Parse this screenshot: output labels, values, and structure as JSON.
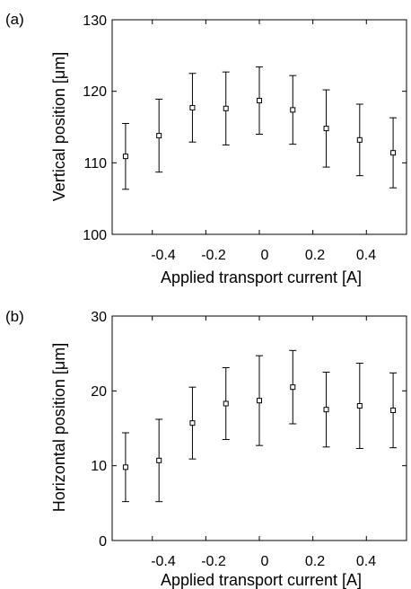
{
  "chart_data": [
    {
      "panel_label": "(a)",
      "type": "scatter",
      "xlabel": "Applied transport current [A]",
      "ylabel": "Vertical position [μm]",
      "xlim": [
        -0.55,
        0.55
      ],
      "ylim": [
        100,
        130
      ],
      "xticks": [
        -0.4,
        -0.2,
        0,
        0.2,
        0.4
      ],
      "xtick_labels": [
        "-0.4",
        "-0.2",
        "0",
        "0.2",
        "0.4"
      ],
      "yticks": [
        100,
        110,
        120,
        130
      ],
      "ytick_labels": [
        "100",
        "110",
        "120",
        "130"
      ],
      "grid": false,
      "marker": "open-square",
      "x": [
        -0.5,
        -0.375,
        -0.25,
        -0.125,
        0,
        0.125,
        0.25,
        0.375,
        0.5
      ],
      "y": [
        110.9,
        113.8,
        117.7,
        117.6,
        118.7,
        117.4,
        114.8,
        113.2,
        111.4
      ],
      "error": [
        4.6,
        5.1,
        4.8,
        5.1,
        4.7,
        4.8,
        5.4,
        5.0,
        4.9
      ]
    },
    {
      "panel_label": "(b)",
      "type": "scatter",
      "xlabel": "Applied transport current [A]",
      "ylabel": "Horizontal position [μm]",
      "xlim": [
        -0.55,
        0.55
      ],
      "ylim": [
        0,
        30
      ],
      "xticks": [
        -0.4,
        -0.2,
        0,
        0.2,
        0.4
      ],
      "xtick_labels": [
        "-0.4",
        "-0.2",
        "0",
        "0.2",
        "0.4"
      ],
      "yticks": [
        0,
        10,
        20,
        30
      ],
      "ytick_labels": [
        "0",
        "10",
        "20",
        "30"
      ],
      "grid": false,
      "marker": "open-square",
      "x": [
        -0.5,
        -0.375,
        -0.25,
        -0.125,
        0,
        0.125,
        0.25,
        0.375,
        0.5
      ],
      "y": [
        9.8,
        10.7,
        15.7,
        18.3,
        18.7,
        20.5,
        17.5,
        18.0,
        17.4
      ],
      "error": [
        4.6,
        5.5,
        4.8,
        4.8,
        6.0,
        4.9,
        5.0,
        5.7,
        5.0
      ]
    }
  ]
}
